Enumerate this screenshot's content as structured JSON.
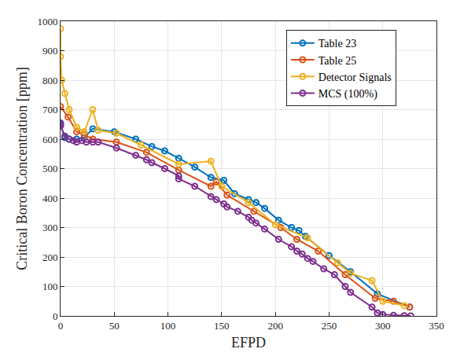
{
  "chart_data": {
    "type": "line",
    "x_label": "EFPD",
    "y_label": "Critical Boron Concentration [ppm]",
    "xlim": [
      0,
      350
    ],
    "xticks": [
      0,
      50,
      100,
      150,
      200,
      250,
      300,
      350
    ],
    "ylim": [
      0,
      1000
    ],
    "yticks": [
      0,
      100,
      200,
      300,
      400,
      500,
      600,
      700,
      800,
      900,
      1000
    ],
    "grid": true,
    "legend": "upper right",
    "marker": "circle-open",
    "line_style": "solid",
    "series": [
      {
        "name": "Table 23",
        "color": "#0072BD",
        "x": [
          0,
          4,
          8,
          15,
          22,
          30,
          50,
          70,
          85,
          97,
          110,
          125,
          140,
          152,
          162,
          175,
          182,
          190,
          203,
          215,
          222,
          228,
          250,
          270,
          295,
          325
        ],
        "values": [
          650,
          605,
          600,
          600,
          605,
          635,
          625,
          600,
          575,
          560,
          535,
          505,
          470,
          460,
          415,
          395,
          385,
          365,
          325,
          300,
          290,
          270,
          205,
          150,
          75,
          30
        ]
      },
      {
        "name": "Table 25",
        "color": "#D95319",
        "x": [
          0,
          7,
          15,
          22,
          30,
          52,
          80,
          110,
          140,
          145,
          155,
          180,
          205,
          220,
          240,
          265,
          293,
          310,
          325
        ],
        "values": [
          710,
          675,
          625,
          615,
          600,
          590,
          555,
          495,
          440,
          455,
          410,
          355,
          300,
          260,
          220,
          140,
          60,
          50,
          30
        ]
      },
      {
        "name": "Detector Signals",
        "color": "#EDB120",
        "x": [
          0,
          0,
          1,
          4,
          8,
          15,
          22,
          30,
          35,
          52,
          75,
          110,
          140,
          150,
          175,
          200,
          230,
          258,
          270,
          290,
          300,
          320
        ],
        "values": [
          975,
          880,
          800,
          755,
          700,
          640,
          625,
          700,
          630,
          620,
          580,
          515,
          525,
          440,
          385,
          310,
          265,
          180,
          145,
          120,
          50,
          35
        ]
      },
      {
        "name": "MCS (100%)",
        "color": "#7E2F8E",
        "x": [
          0,
          0,
          4,
          8,
          12,
          15,
          20,
          24,
          30,
          35,
          52,
          70,
          80,
          85,
          97,
          110,
          110,
          125,
          140,
          145,
          152,
          155,
          165,
          175,
          178,
          182,
          190,
          203,
          215,
          220,
          225,
          230,
          235,
          245,
          255,
          265,
          270,
          290,
          295,
          300,
          310,
          320,
          326
        ],
        "values": [
          655,
          645,
          610,
          600,
          595,
          590,
          595,
          590,
          590,
          590,
          570,
          545,
          530,
          520,
          500,
          475,
          465,
          440,
          405,
          395,
          380,
          370,
          355,
          335,
          325,
          315,
          295,
          260,
          235,
          220,
          210,
          195,
          185,
          160,
          140,
          100,
          80,
          30,
          10,
          5,
          2,
          1,
          0
        ]
      }
    ]
  }
}
